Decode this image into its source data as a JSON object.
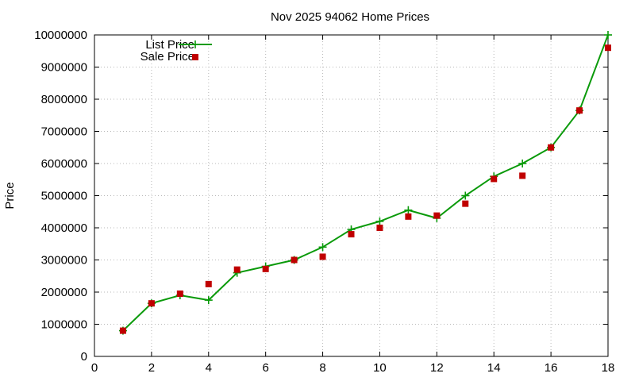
{
  "chart_data": {
    "type": "line",
    "title": "Nov 2025 94062 Home Prices",
    "xlabel": "",
    "ylabel": "Price",
    "xlim": [
      0,
      18
    ],
    "ylim": [
      0,
      10000000
    ],
    "xticks": [
      0,
      2,
      4,
      6,
      8,
      10,
      12,
      14,
      16,
      18
    ],
    "yticks": [
      0,
      1000000,
      2000000,
      3000000,
      4000000,
      5000000,
      6000000,
      7000000,
      8000000,
      9000000,
      10000000
    ],
    "grid": true,
    "legend_position": "top-left",
    "series": [
      {
        "name": "List Price",
        "style": "line-with-plus-markers",
        "color": "#0a9a0a",
        "x": [
          1,
          2,
          3,
          4,
          5,
          6,
          7,
          8,
          9,
          10,
          11,
          12,
          13,
          14,
          15,
          16,
          17,
          18
        ],
        "y": [
          800000,
          1650000,
          1900000,
          1750000,
          2600000,
          2800000,
          3000000,
          3400000,
          3950000,
          4200000,
          4550000,
          4300000,
          5000000,
          5600000,
          6000000,
          6500000,
          7650000,
          10000000
        ]
      },
      {
        "name": "Sale Price",
        "style": "square-markers",
        "color": "#c00000",
        "x": [
          1,
          2,
          3,
          4,
          5,
          6,
          7,
          8,
          9,
          10,
          11,
          12,
          13,
          14,
          15,
          16,
          17,
          18
        ],
        "y": [
          800000,
          1650000,
          1950000,
          2250000,
          2700000,
          2720000,
          3000000,
          3100000,
          3800000,
          4000000,
          4350000,
          4380000,
          4750000,
          5520000,
          5620000,
          6500000,
          7650000,
          9600000
        ]
      }
    ]
  }
}
